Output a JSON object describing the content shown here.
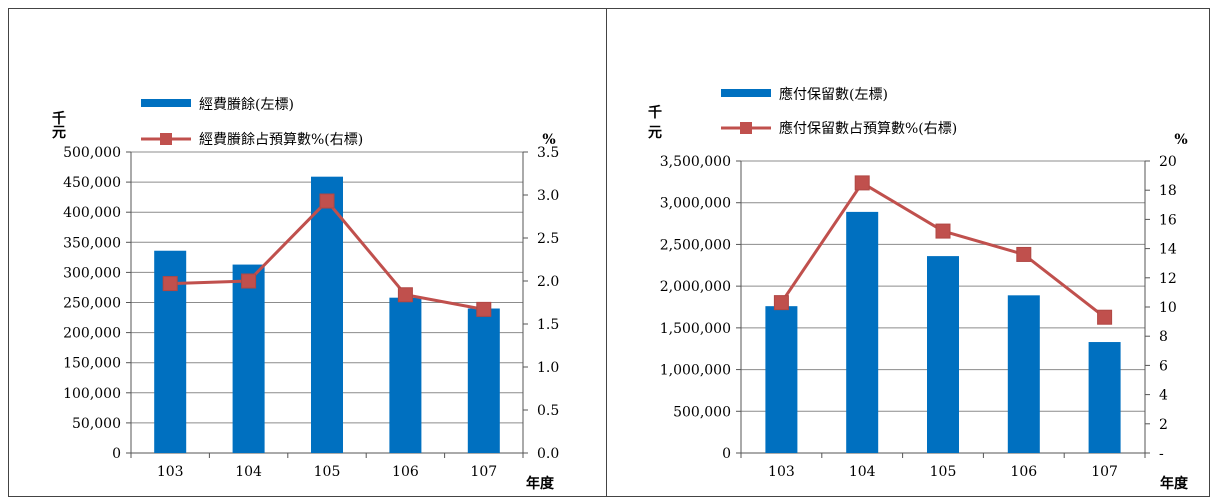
{
  "chart_data": [
    {
      "type": "bar",
      "categories": [
        "103",
        "104",
        "105",
        "106",
        "107"
      ],
      "series": [
        {
          "name": "經費賸餘(左標)",
          "kind": "bar",
          "axis": "left",
          "values": [
            336000,
            313000,
            459000,
            258000,
            240000
          ]
        },
        {
          "name": "經費賸餘占預算數%(右標)",
          "kind": "line",
          "axis": "right",
          "values": [
            1.97,
            2.0,
            2.93,
            1.84,
            1.67
          ]
        }
      ],
      "y_left": {
        "unit": "千\n元",
        "ylim": [
          0,
          500000
        ],
        "ticks": [
          "0",
          "50,000",
          "100,000",
          "150,000",
          "200,000",
          "250,000",
          "300,000",
          "350,000",
          "400,000",
          "450,000",
          "500,000"
        ]
      },
      "y_right": {
        "unit": "%",
        "ylim": [
          0,
          3.5
        ],
        "ticks": [
          "0.0",
          "0.5",
          "1.0",
          "1.5",
          "2.0",
          "2.5",
          "3.0",
          "3.5"
        ]
      },
      "xlabel": "年度",
      "grid": true,
      "legend": "top-left",
      "colors": {
        "bar": "#0070C0",
        "line": "#C0504D"
      }
    },
    {
      "type": "bar",
      "categories": [
        "103",
        "104",
        "105",
        "106",
        "107"
      ],
      "series": [
        {
          "name": "應付保留數(左標)",
          "kind": "bar",
          "axis": "left",
          "values": [
            1760000,
            2890000,
            2360000,
            1890000,
            1330000
          ]
        },
        {
          "name": "應付保留數占預算數%(右標)",
          "kind": "line",
          "axis": "right",
          "values": [
            10.3,
            18.5,
            15.2,
            13.6,
            9.3
          ]
        }
      ],
      "y_left": {
        "unit": "千\n元",
        "ylim": [
          0,
          3500000
        ],
        "ticks": [
          "0",
          "500,000",
          "1,000,000",
          "1,500,000",
          "2,000,000",
          "2,500,000",
          "3,000,000",
          "3,500,000"
        ]
      },
      "y_right": {
        "unit": "%",
        "ylim": [
          0,
          20
        ],
        "ticks": [
          "-",
          "2",
          "4",
          "6",
          "8",
          "10",
          "12",
          "14",
          "16",
          "18",
          "20"
        ]
      },
      "xlabel": "年度",
      "grid": true,
      "legend": "top-left",
      "colors": {
        "bar": "#0070C0",
        "line": "#C0504D"
      }
    }
  ]
}
